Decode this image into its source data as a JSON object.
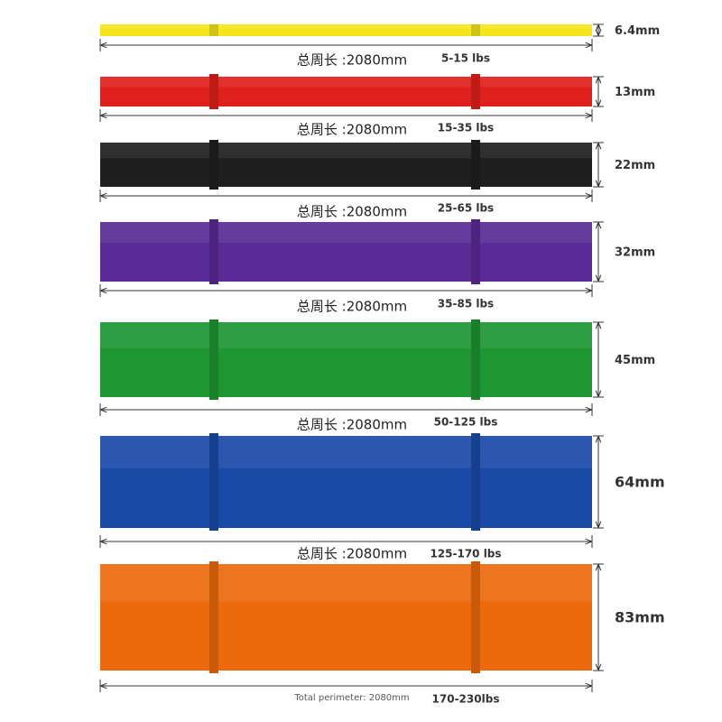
{
  "bands": [
    {
      "color": "#f5e61c",
      "thickness": "6.4mm",
      "perimeter": "总周长 :2080mm",
      "resistance": "5-15 lbs"
    },
    {
      "color": "#e0201c",
      "thickness": "13mm",
      "perimeter": "总周长 :2080mm",
      "resistance": "15-35 lbs"
    },
    {
      "color": "#1f1f1f",
      "thickness": "22mm",
      "perimeter": "总周长 :2080mm",
      "resistance": "25-65 lbs"
    },
    {
      "color": "#5a2b96",
      "thickness": "32mm",
      "perimeter": "总周长 :2080mm",
      "resistance": "35-85 lbs"
    },
    {
      "color": "#1e9632",
      "thickness": "45mm",
      "perimeter": "总周长 :2080mm",
      "resistance": "50-125 lbs"
    },
    {
      "color": "#1a4aa8",
      "thickness": "64mm",
      "perimeter": "总周长 :2080mm",
      "resistance": "125-170 lbs"
    },
    {
      "color": "#ec6a0c",
      "thickness": "83mm",
      "perimeter": "Total perimeter: 2080mm",
      "resistance": "170-230lbs"
    }
  ]
}
